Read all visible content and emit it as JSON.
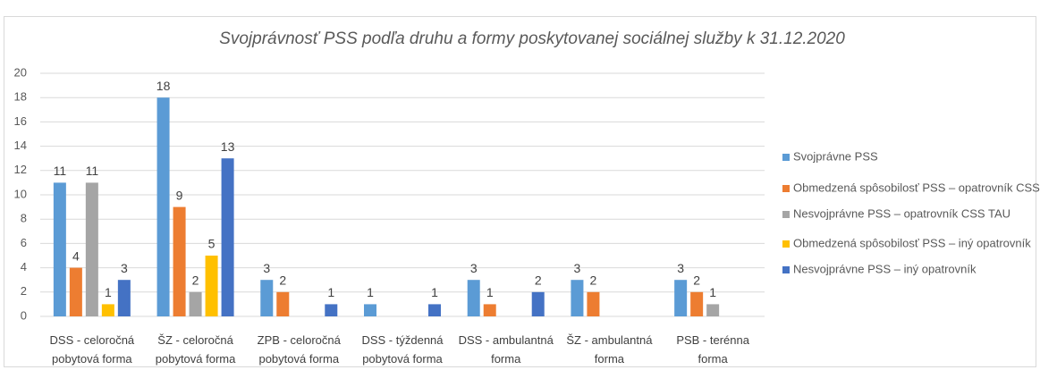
{
  "chart_data": {
    "type": "bar",
    "title": "Svojprávnosť PSS podľa druhu a formy poskytovanej sociálnej služby k 31.12.2020",
    "categories": [
      "DSS - celoročná pobytová forma",
      "ŠZ - celoročná pobytová forma",
      "ZPB - celoročná pobytová forma",
      "DSS - týždenná pobytová forma",
      "DSS - ambulantná forma",
      "ŠZ - ambulantná forma",
      "PSB - terénna forma"
    ],
    "series": [
      {
        "name": "Svojprávne PSS",
        "color": "#5b9bd5",
        "values": [
          11,
          18,
          3,
          1,
          3,
          3,
          3
        ]
      },
      {
        "name": "Obmedzená spôsobilosť PSS – opatrovník CSS TAU",
        "color": "#ed7d31",
        "values": [
          4,
          9,
          2,
          null,
          1,
          2,
          2
        ]
      },
      {
        "name": "Nesvojprávne PSS – opatrovník CSS TAU",
        "color": "#a5a5a5",
        "values": [
          11,
          2,
          null,
          null,
          null,
          null,
          1
        ]
      },
      {
        "name": "Obmedzená spôsobilosť PSS – iný opatrovník",
        "color": "#ffc000",
        "values": [
          1,
          5,
          null,
          null,
          null,
          null,
          null
        ]
      },
      {
        "name": "Nesvojprávne PSS – iný opatrovník",
        "color": "#4472c4",
        "values": [
          3,
          13,
          1,
          1,
          2,
          null,
          null
        ]
      }
    ],
    "ylim": [
      0,
      20
    ],
    "yticks": [
      0,
      2,
      4,
      6,
      8,
      10,
      12,
      14,
      16,
      18,
      20
    ],
    "grid": true,
    "legend": "right"
  }
}
